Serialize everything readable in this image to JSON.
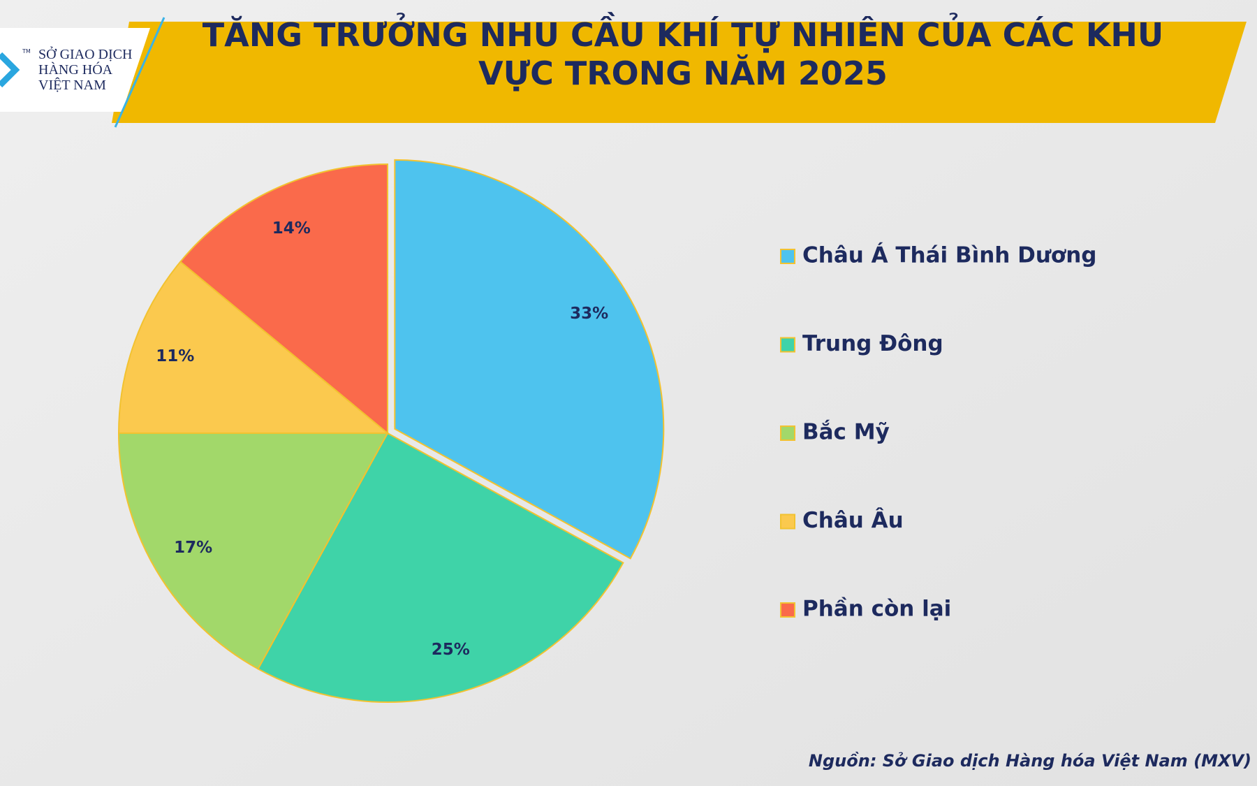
{
  "logo": {
    "lines": [
      "SỞ GIAO DỊCH",
      "HÀNG HÓA",
      "VIỆT NAM"
    ],
    "mark": "TM"
  },
  "chart_data": {
    "type": "pie",
    "title": "TĂNG TRƯỞNG NHU CẦU KHÍ TỰ NHIÊN CỦA CÁC KHU VỰC TRONG NĂM 2025",
    "categories": [
      "Châu Á Thái Bình Dương",
      "Trung Đông",
      "Bắc Mỹ",
      "Châu Âu",
      "Phần còn lại"
    ],
    "values": [
      33,
      25,
      17,
      11,
      14
    ],
    "value_labels": [
      "33%",
      "25%",
      "17%",
      "11%",
      "14%"
    ],
    "colors": [
      "#4ec3ee",
      "#3fd3a8",
      "#a2d86a",
      "#fbc94e",
      "#fa6a4b"
    ],
    "legend": "right",
    "source": "Nguồn: Sở Giao dịch Hàng hóa Việt Nam (MXV)"
  }
}
